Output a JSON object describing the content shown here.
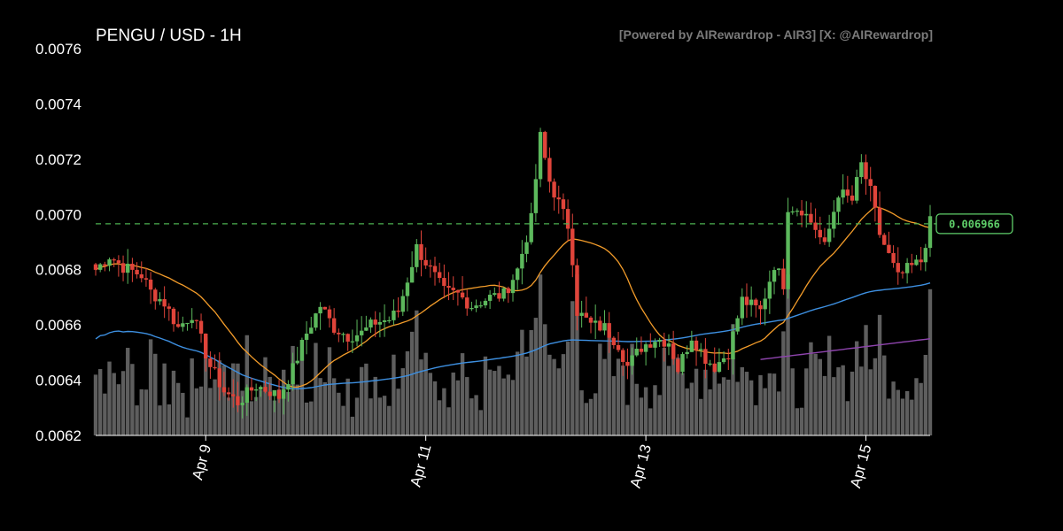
{
  "chart_data": {
    "type": "candlestick",
    "title": "PENGU / USD - 1H",
    "credit": "[Powered by AIRewardrop - AIR3] [X: @AIRewardrop]",
    "ylim": [
      0.0062,
      0.0076
    ],
    "yticks": [
      "0.0062",
      "0.0064",
      "0.0066",
      "0.0068",
      "0.0070",
      "0.0072",
      "0.0074",
      "0.0076"
    ],
    "xticks": [
      {
        "label": "Apr 9",
        "index": 24
      },
      {
        "label": "Apr 11",
        "index": 72
      },
      {
        "label": "Apr 13",
        "index": 120
      },
      {
        "label": "Apr 15",
        "index": 168
      }
    ],
    "current_price": "0.006966",
    "current_price_value": 0.006966,
    "close_anchors": [
      [
        0,
        0.0068
      ],
      [
        3,
        0.00685
      ],
      [
        6,
        0.00681
      ],
      [
        10,
        0.00678
      ],
      [
        12,
        0.00672
      ],
      [
        15,
        0.00668
      ],
      [
        18,
        0.00659
      ],
      [
        21,
        0.00664
      ],
      [
        25,
        0.00645
      ],
      [
        28,
        0.00636
      ],
      [
        31,
        0.00632
      ],
      [
        35,
        0.00638
      ],
      [
        38,
        0.00636
      ],
      [
        40,
        0.00634
      ],
      [
        43,
        0.00644
      ],
      [
        46,
        0.00657
      ],
      [
        49,
        0.00667
      ],
      [
        52,
        0.00659
      ],
      [
        55,
        0.00656
      ],
      [
        58,
        0.00657
      ],
      [
        61,
        0.00661
      ],
      [
        64,
        0.00662
      ],
      [
        66,
        0.00665
      ],
      [
        70,
        0.00688
      ],
      [
        73,
        0.0068
      ],
      [
        76,
        0.00672
      ],
      [
        79,
        0.00671
      ],
      [
        82,
        0.00667
      ],
      [
        86,
        0.0067
      ],
      [
        89,
        0.00671
      ],
      [
        92,
        0.0068
      ],
      [
        95,
        0.00698
      ],
      [
        97,
        0.00728
      ],
      [
        99,
        0.00712
      ],
      [
        101,
        0.00704
      ],
      [
        103,
        0.00696
      ],
      [
        104,
        0.00684
      ],
      [
        105,
        0.00665
      ],
      [
        108,
        0.0066
      ],
      [
        111,
        0.00659
      ],
      [
        114,
        0.00653
      ],
      [
        116,
        0.00645
      ],
      [
        119,
        0.00652
      ],
      [
        122,
        0.00655
      ],
      [
        125,
        0.00654
      ],
      [
        127,
        0.00644
      ],
      [
        130,
        0.00656
      ],
      [
        133,
        0.00648
      ],
      [
        135,
        0.00645
      ],
      [
        138,
        0.0065
      ],
      [
        141,
        0.00669
      ],
      [
        145,
        0.00665
      ],
      [
        148,
        0.00682
      ],
      [
        150,
        0.00675
      ],
      [
        151,
        0.00703
      ],
      [
        154,
        0.00702
      ],
      [
        157,
        0.00695
      ],
      [
        159,
        0.00688
      ],
      [
        162,
        0.00708
      ],
      [
        165,
        0.00705
      ],
      [
        167,
        0.00718
      ],
      [
        169,
        0.00708
      ],
      [
        171,
        0.00693
      ],
      [
        173,
        0.00685
      ],
      [
        175,
        0.00677
      ],
      [
        177,
        0.0068
      ],
      [
        180,
        0.00683
      ],
      [
        182,
        0.00697
      ]
    ],
    "volume_max": 0.006
  }
}
